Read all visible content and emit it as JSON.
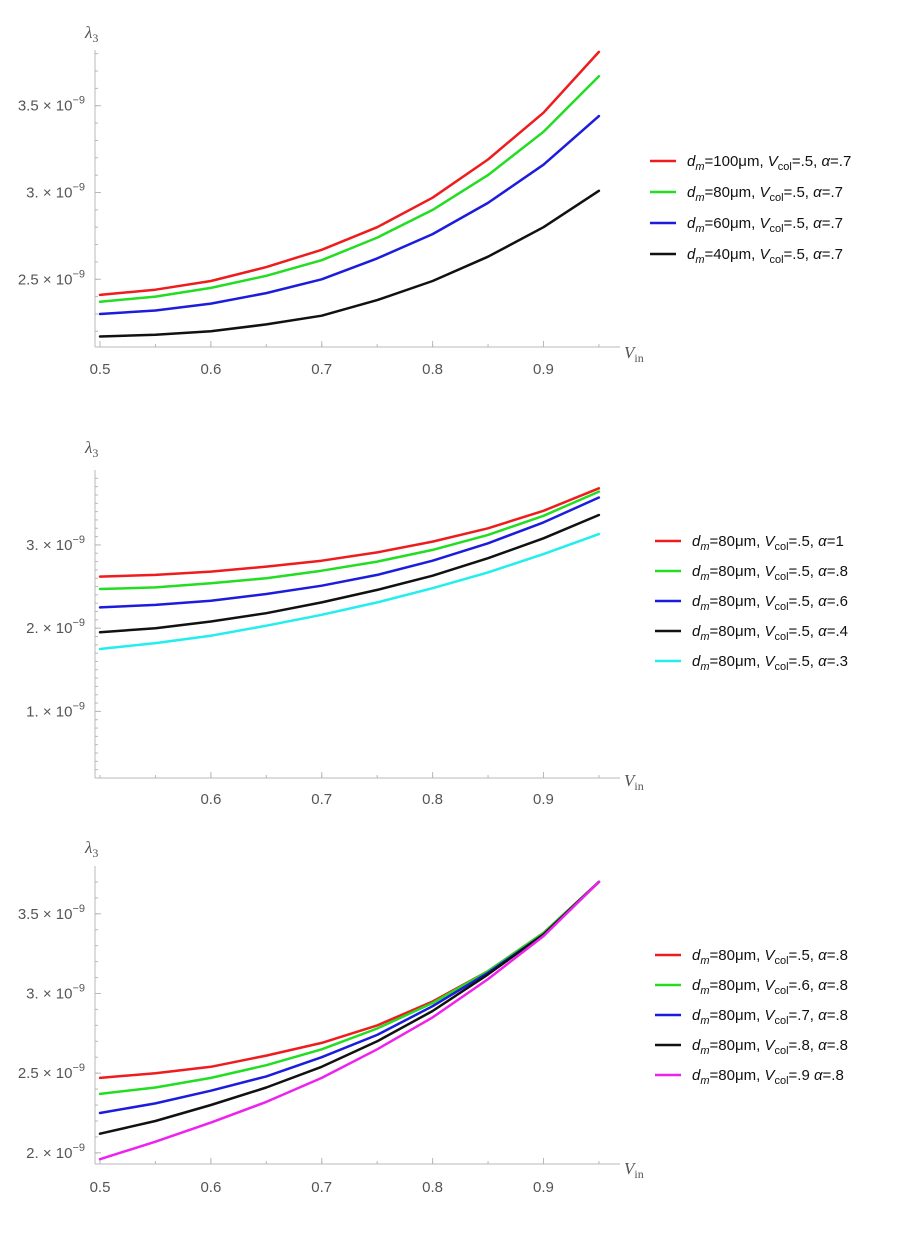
{
  "chart_data": [
    {
      "type": "line",
      "title": "",
      "ylabel_main": "λ",
      "ylabel_sub": "3",
      "xlabel_main": "V",
      "xlabel_sub": "in",
      "xlim": [
        0.5,
        0.96
      ],
      "ylim": [
        2.15e-09,
        3.85e-09
      ],
      "x": [
        0.5,
        0.55,
        0.6,
        0.65,
        0.7,
        0.75,
        0.8,
        0.85,
        0.9,
        0.95
      ],
      "xticks": [
        "0.5",
        "0.6",
        "0.7",
        "0.8",
        "0.9"
      ],
      "yticks": [
        {
          "value": 2.5e-09,
          "mant": "2.5",
          "exp": "−9"
        },
        {
          "value": 3e-09,
          "mant": "3.",
          "exp": "−9"
        },
        {
          "value": 3.5e-09,
          "mant": "3.5",
          "exp": "−9"
        }
      ],
      "series": [
        {
          "name": "d_m=100μm, V_col=.5, α=.7",
          "label_dm": "100μm",
          "label_vcol": ".5",
          "label_alpha": ".7",
          "sep": ", ",
          "color": "#ee1c1c",
          "values": [
            2.41e-09,
            2.44e-09,
            2.49e-09,
            2.57e-09,
            2.67e-09,
            2.8e-09,
            2.97e-09,
            3.19e-09,
            3.46e-09,
            3.81e-09
          ]
        },
        {
          "name": "d_m=80μm, V_col=.5, α=.7",
          "label_dm": "80μm",
          "label_vcol": ".5",
          "label_alpha": ".7",
          "sep": ", ",
          "color": "#22dd22",
          "values": [
            2.37e-09,
            2.4e-09,
            2.45e-09,
            2.52e-09,
            2.61e-09,
            2.74e-09,
            2.9e-09,
            3.1e-09,
            3.35e-09,
            3.67e-09
          ]
        },
        {
          "name": "d_m=60μm, V_col=.5, α=.7",
          "label_dm": "60μm",
          "label_vcol": ".5",
          "label_alpha": ".7",
          "sep": ", ",
          "color": "#1c1cdd",
          "values": [
            2.3e-09,
            2.32e-09,
            2.36e-09,
            2.42e-09,
            2.5e-09,
            2.62e-09,
            2.76e-09,
            2.94e-09,
            3.16e-09,
            3.44e-09
          ]
        },
        {
          "name": "d_m=40μm, V_col=.5, α=.7",
          "label_dm": "40μm",
          "label_vcol": ".5",
          "label_alpha": ".7",
          "sep": ", ",
          "color": "#111111",
          "values": [
            2.17e-09,
            2.18e-09,
            2.2e-09,
            2.24e-09,
            2.29e-09,
            2.38e-09,
            2.49e-09,
            2.63e-09,
            2.8e-09,
            3.01e-09
          ]
        }
      ]
    },
    {
      "type": "line",
      "title": "",
      "ylabel_main": "λ",
      "ylabel_sub": "3",
      "xlabel_main": "V",
      "xlabel_sub": "in",
      "xlim": [
        0.5,
        0.96
      ],
      "ylim": [
        2e-10,
        3.9e-09
      ],
      "x": [
        0.5,
        0.55,
        0.6,
        0.65,
        0.7,
        0.75,
        0.8,
        0.85,
        0.9,
        0.95
      ],
      "xticks": [
        "0.6",
        "0.7",
        "0.8",
        "0.9"
      ],
      "yticks": [
        {
          "value": 1e-09,
          "mant": "1.",
          "exp": "−9"
        },
        {
          "value": 2e-09,
          "mant": "2.",
          "exp": "−9"
        },
        {
          "value": 3e-09,
          "mant": "3.",
          "exp": "−9"
        }
      ],
      "series": [
        {
          "name": "d_m=80μm, V_col=.5, α=1",
          "label_dm": "80μm",
          "label_vcol": ".5",
          "label_alpha": "1",
          "sep": ", ",
          "color": "#ee1c1c",
          "values": [
            2.62e-09,
            2.64e-09,
            2.68e-09,
            2.74e-09,
            2.81e-09,
            2.91e-09,
            3.04e-09,
            3.2e-09,
            3.41e-09,
            3.68e-09
          ]
        },
        {
          "name": "d_m=80μm, V_col=.5, α=.8",
          "label_dm": "80μm",
          "label_vcol": ".5",
          "label_alpha": ".8",
          "sep": ", ",
          "color": "#22dd22",
          "values": [
            2.47e-09,
            2.49e-09,
            2.54e-09,
            2.6e-09,
            2.69e-09,
            2.8e-09,
            2.94e-09,
            3.12e-09,
            3.35e-09,
            3.64e-09
          ]
        },
        {
          "name": "d_m=80μm, V_col=.5, α=.6",
          "label_dm": "80μm",
          "label_vcol": ".5",
          "label_alpha": ".6",
          "sep": ", ",
          "color": "#1c1cdd",
          "values": [
            2.25e-09,
            2.28e-09,
            2.33e-09,
            2.41e-09,
            2.51e-09,
            2.64e-09,
            2.81e-09,
            3.02e-09,
            3.27e-09,
            3.57e-09
          ]
        },
        {
          "name": "d_m=80μm, V_col=.5, α=.4",
          "label_dm": "80μm",
          "label_vcol": ".5",
          "label_alpha": ".4",
          "sep": ", ",
          "color": "#111111",
          "values": [
            1.95e-09,
            2e-09,
            2.08e-09,
            2.18e-09,
            2.31e-09,
            2.46e-09,
            2.63e-09,
            2.84e-09,
            3.08e-09,
            3.36e-09
          ]
        },
        {
          "name": "d_m=80μm, V_col=.5, α=.3",
          "label_dm": "80μm",
          "label_vcol": ".5",
          "label_alpha": ".3",
          "sep": ", ",
          "color": "#22eeee",
          "values": [
            1.75e-09,
            1.82e-09,
            1.91e-09,
            2.03e-09,
            2.16e-09,
            2.31e-09,
            2.48e-09,
            2.67e-09,
            2.89e-09,
            3.13e-09
          ]
        }
      ]
    },
    {
      "type": "line",
      "title": "",
      "ylabel_main": "λ",
      "ylabel_sub": "3",
      "xlabel_main": "V",
      "xlabel_sub": "in",
      "xlim": [
        0.5,
        0.96
      ],
      "ylim": [
        1.93e-09,
        3.8e-09
      ],
      "x": [
        0.5,
        0.55,
        0.6,
        0.65,
        0.7,
        0.75,
        0.8,
        0.85,
        0.9,
        0.95
      ],
      "xticks": [
        "0.5",
        "0.6",
        "0.7",
        "0.8",
        "0.9"
      ],
      "yticks": [
        {
          "value": 2e-09,
          "mant": "2.",
          "exp": "−9"
        },
        {
          "value": 2.5e-09,
          "mant": "2.5",
          "exp": "−9"
        },
        {
          "value": 3e-09,
          "mant": "3.",
          "exp": "−9"
        },
        {
          "value": 3.5e-09,
          "mant": "3.5",
          "exp": "−9"
        }
      ],
      "series": [
        {
          "name": "d_m=80μm, V_col=.5, α=.8",
          "label_dm": "80μm",
          "label_vcol": ".5",
          "label_alpha": ".8",
          "sep": ", ",
          "color": "#ee1c1c",
          "values": [
            2.47e-09,
            2.5e-09,
            2.54e-09,
            2.61e-09,
            2.69e-09,
            2.8e-09,
            2.95e-09,
            3.14e-09,
            3.38e-09,
            3.7e-09
          ]
        },
        {
          "name": "d_m=80μm, V_col=.6, α=.8",
          "label_dm": "80μm",
          "label_vcol": ".6",
          "label_alpha": ".8",
          "sep": ", ",
          "color": "#22dd22",
          "values": [
            2.37e-09,
            2.41e-09,
            2.47e-09,
            2.55e-09,
            2.65e-09,
            2.78e-09,
            2.94e-09,
            3.14e-09,
            3.38e-09,
            3.7e-09
          ]
        },
        {
          "name": "d_m=80μm, V_col=.7, α=.8",
          "label_dm": "80μm",
          "label_vcol": ".7",
          "label_alpha": ".8",
          "sep": ", ",
          "color": "#1c1cdd",
          "values": [
            2.25e-09,
            2.31e-09,
            2.39e-09,
            2.48e-09,
            2.6e-09,
            2.74e-09,
            2.92e-09,
            3.13e-09,
            3.37e-09,
            3.7e-09
          ]
        },
        {
          "name": "d_m=80μm, V_col=.8, α=.8",
          "label_dm": "80μm",
          "label_vcol": ".8",
          "label_alpha": ".8",
          "sep": ", ",
          "color": "#111111",
          "values": [
            2.12e-09,
            2.2e-09,
            2.3e-09,
            2.41e-09,
            2.54e-09,
            2.7e-09,
            2.89e-09,
            3.12e-09,
            3.37e-09,
            3.7e-09
          ]
        },
        {
          "name": "d_m=80μm, V_col=.9 α=.8",
          "label_dm": "80μm",
          "label_vcol": ".9",
          "label_alpha": ".8",
          "sep": " ",
          "color": "#ee22ee",
          "values": [
            1.96e-09,
            2.07e-09,
            2.19e-09,
            2.32e-09,
            2.47e-09,
            2.65e-09,
            2.85e-09,
            3.09e-09,
            3.36e-09,
            3.7e-09
          ]
        }
      ]
    }
  ]
}
